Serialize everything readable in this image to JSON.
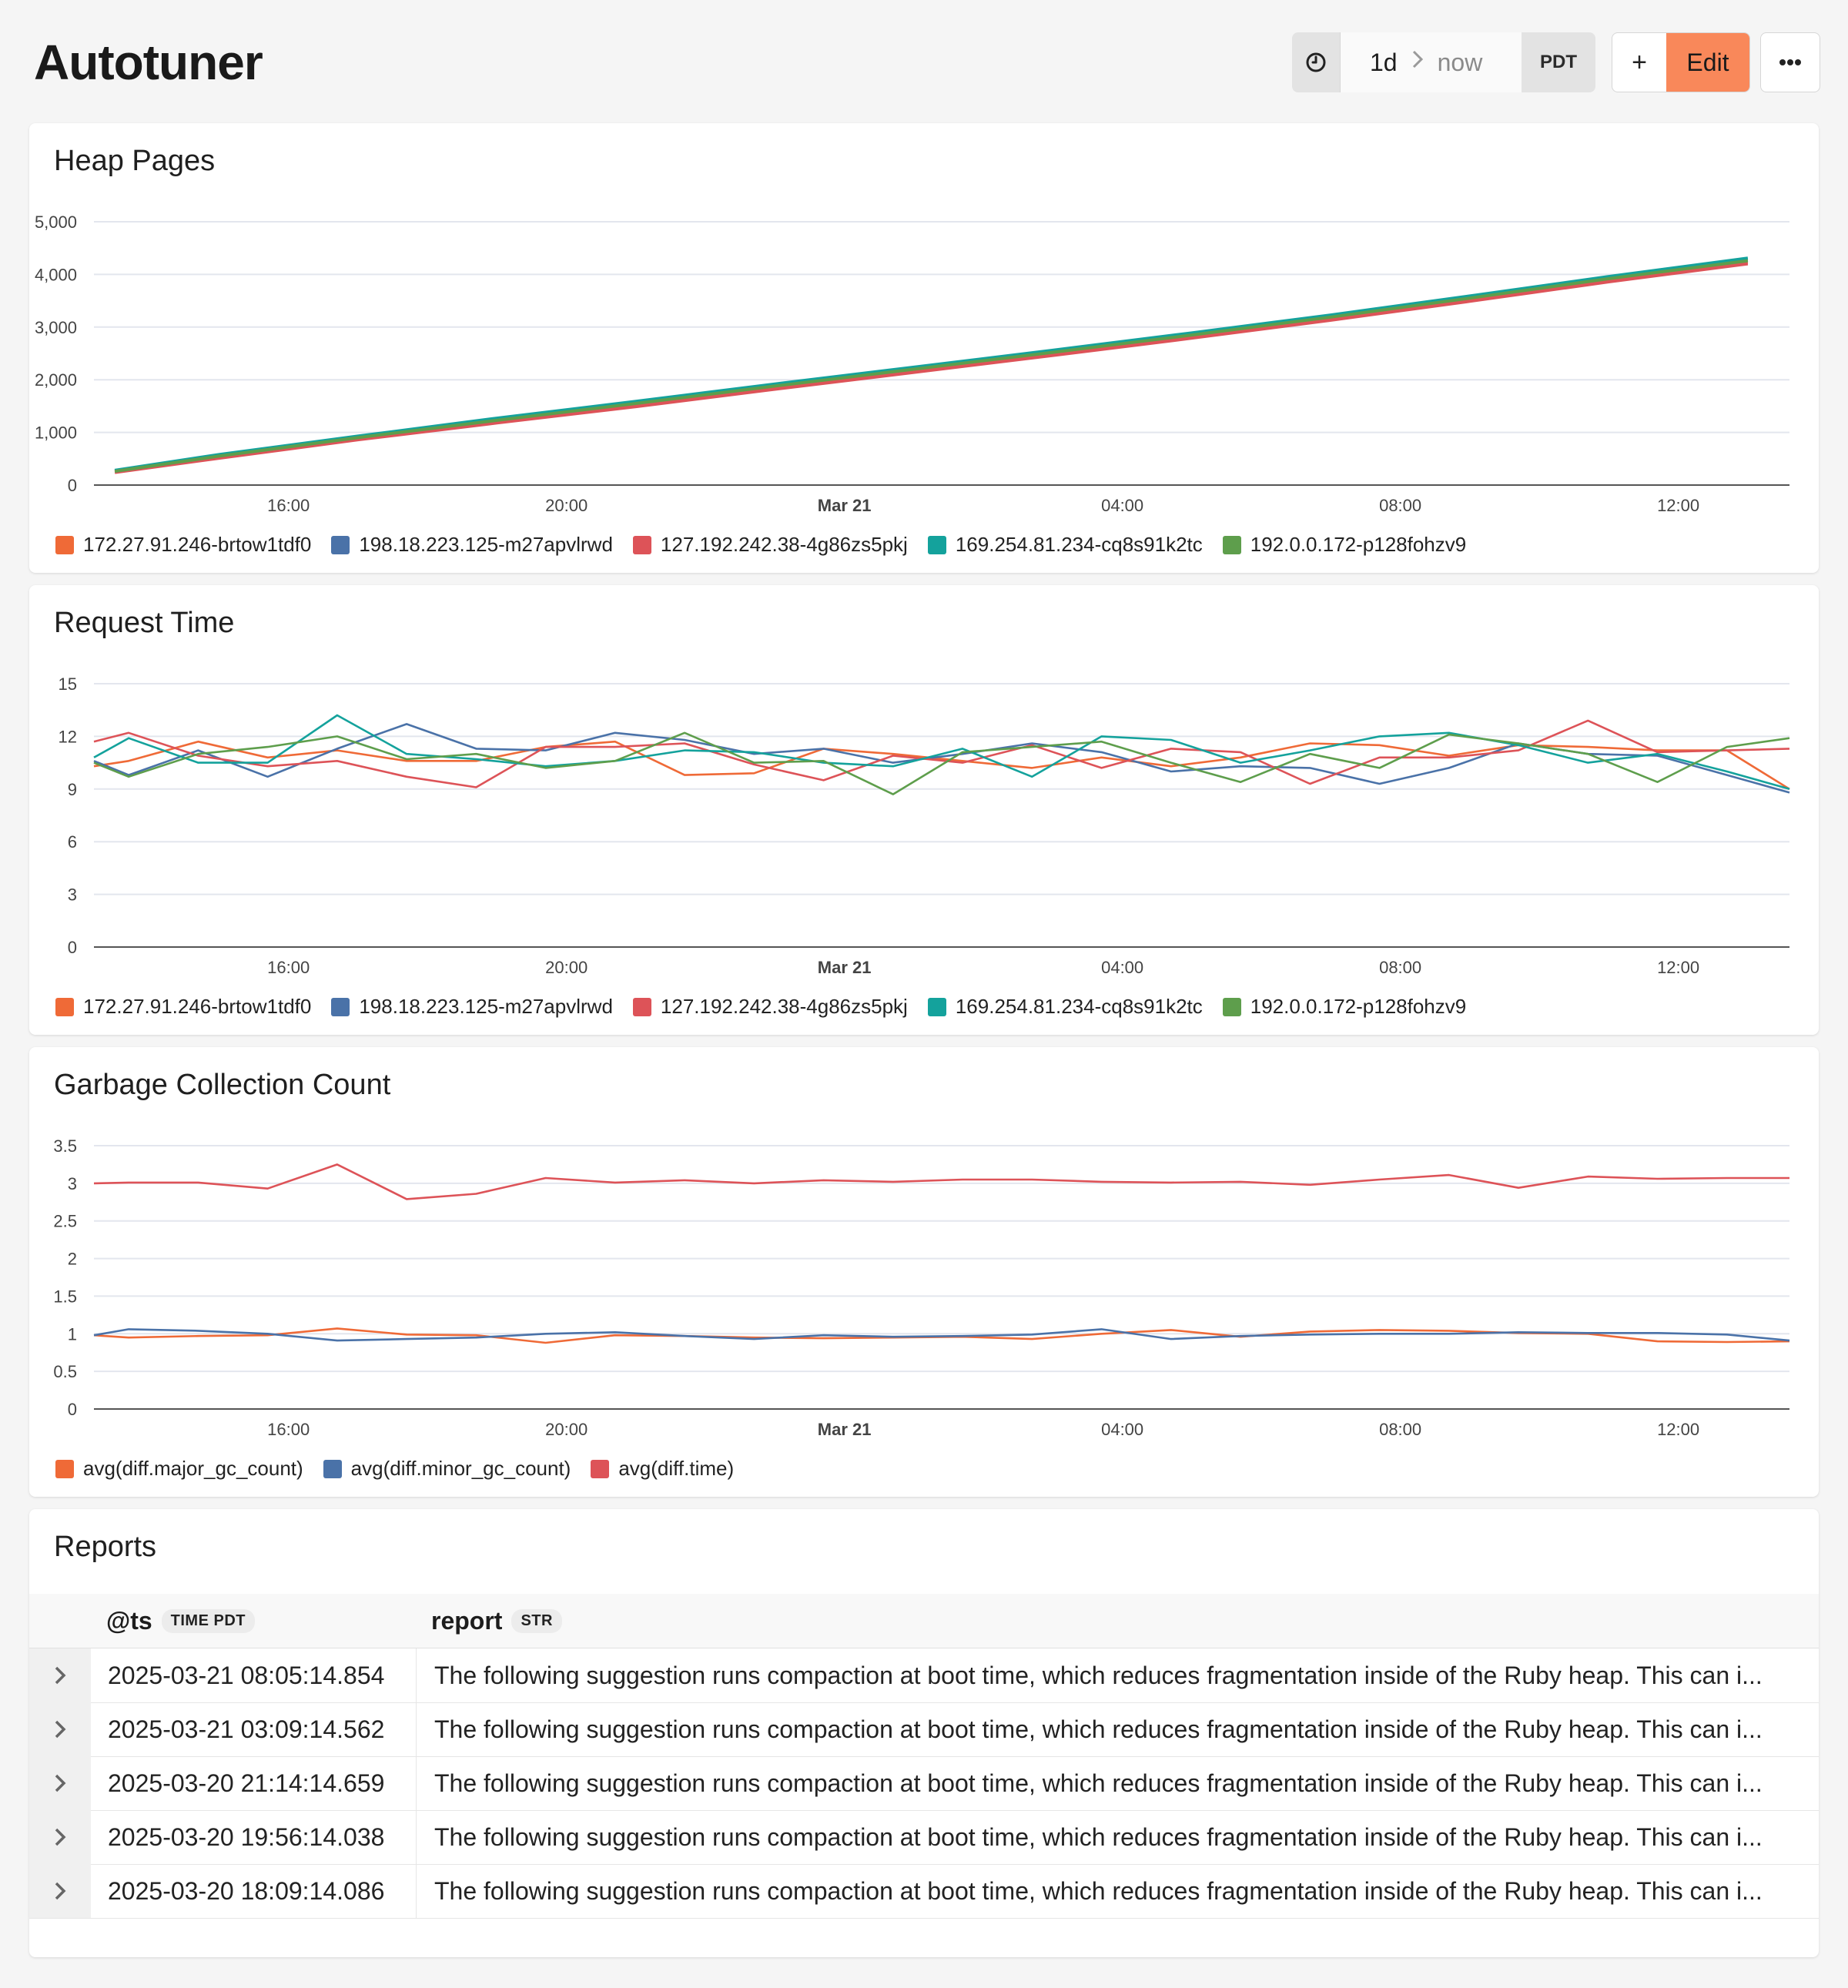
{
  "header": {
    "title": "Autotuner",
    "time_range": {
      "from": "1d",
      "to": "now",
      "timezone": "PDT"
    },
    "add_label": "+",
    "edit_label": "Edit",
    "more_icon": "ellipsis-icon",
    "clock_icon": "clock-icon",
    "accent_color": "#f9885a"
  },
  "series_colors": {
    "orange": "#ef6a37",
    "blue": "#4a72a8",
    "red": "#dd5358",
    "teal": "#14a29c",
    "green": "#5e9e4c"
  },
  "panels": {
    "heap_pages": {
      "title": "Heap Pages",
      "legend": [
        "172.27.91.246-brtow1tdf0",
        "198.18.223.125-m27apvlrwd",
        "127.192.242.38-4g86zs5pkj",
        "169.254.81.234-cq8s91k2tc",
        "192.0.0.172-p128fohzv9"
      ]
    },
    "request_time": {
      "title": "Request Time",
      "legend": [
        "172.27.91.246-brtow1tdf0",
        "198.18.223.125-m27apvlrwd",
        "127.192.242.38-4g86zs5pkj",
        "169.254.81.234-cq8s91k2tc",
        "192.0.0.172-p128fohzv9"
      ]
    },
    "gc_count": {
      "title": "Garbage Collection Count",
      "legend": [
        "avg(diff.major_gc_count)",
        "avg(diff.minor_gc_count)",
        "avg(diff.time)"
      ]
    }
  },
  "chart_data": [
    {
      "type": "line",
      "title": "Heap Pages",
      "x_ticks": [
        "16:00",
        "20:00",
        "Mar 21",
        "04:00",
        "08:00",
        "12:00"
      ],
      "x_tick_hours": [
        16,
        20,
        24,
        28,
        32,
        36
      ],
      "x_range_hours": [
        13.2,
        37.6
      ],
      "ylim": [
        0,
        5000
      ],
      "y_ticks": [
        "0",
        "1,000",
        "2,000",
        "3,000",
        "4,000",
        "5,000"
      ],
      "y_tick_values": [
        0,
        1000,
        2000,
        3000,
        4000,
        5000
      ],
      "x": [
        13.5,
        15.0,
        17.0,
        19.0,
        21.0,
        23.0,
        25.0,
        27.0,
        29.0,
        31.0,
        33.0,
        35.0,
        37.0
      ],
      "series": [
        {
          "name": "172.27.91.246-brtow1tdf0",
          "color": "#ef6a37",
          "values": [
            250,
            530,
            880,
            1210,
            1520,
            1850,
            2170,
            2490,
            2820,
            3160,
            3520,
            3890,
            4230
          ]
        },
        {
          "name": "198.18.223.125-m27apvlrwd",
          "color": "#4a72a8",
          "values": [
            270,
            560,
            910,
            1240,
            1560,
            1890,
            2210,
            2530,
            2860,
            3200,
            3560,
            3930,
            4270
          ]
        },
        {
          "name": "127.192.242.38-4g86zs5pkj",
          "color": "#dd5358",
          "values": [
            240,
            510,
            860,
            1180,
            1490,
            1820,
            2140,
            2460,
            2790,
            3130,
            3490,
            3860,
            4200
          ]
        },
        {
          "name": "169.254.81.234-cq8s91k2tc",
          "color": "#14a29c",
          "values": [
            280,
            580,
            930,
            1270,
            1590,
            1920,
            2240,
            2560,
            2890,
            3230,
            3590,
            3960,
            4310
          ]
        },
        {
          "name": "192.0.0.172-p128fohzv9",
          "color": "#5e9e4c",
          "values": [
            260,
            550,
            900,
            1230,
            1550,
            1880,
            2200,
            2520,
            2850,
            3190,
            3550,
            3920,
            4260
          ]
        }
      ]
    },
    {
      "type": "line",
      "title": "Request Time",
      "x_ticks": [
        "16:00",
        "20:00",
        "Mar 21",
        "04:00",
        "08:00",
        "12:00"
      ],
      "x_tick_hours": [
        16,
        20,
        24,
        28,
        32,
        36
      ],
      "x_range_hours": [
        13.2,
        37.6
      ],
      "ylim": [
        0,
        15
      ],
      "y_ticks": [
        "0",
        "3",
        "6",
        "9",
        "12",
        "15"
      ],
      "y_tick_values": [
        0,
        3,
        6,
        9,
        12,
        15
      ],
      "x": [
        13.2,
        13.7,
        14.7,
        15.7,
        16.7,
        17.7,
        18.7,
        19.7,
        20.7,
        21.7,
        22.7,
        23.7,
        24.7,
        25.7,
        26.7,
        27.7,
        28.7,
        29.7,
        30.7,
        31.7,
        32.7,
        33.7,
        34.7,
        35.7,
        36.7,
        37.6
      ],
      "series": [
        {
          "name": "172.27.91.246-brtow1tdf0",
          "color": "#ef6a37",
          "values": [
            10.3,
            10.6,
            11.7,
            10.8,
            11.2,
            10.6,
            10.6,
            11.4,
            11.7,
            9.8,
            9.9,
            11.3,
            11.0,
            10.6,
            10.2,
            10.8,
            10.3,
            10.8,
            11.6,
            11.5,
            10.9,
            11.5,
            11.4,
            11.2,
            11.2,
            9.0
          ]
        },
        {
          "name": "198.18.223.125-m27apvlrwd",
          "color": "#4a72a8",
          "values": [
            10.6,
            9.8,
            11.2,
            9.7,
            11.3,
            12.7,
            11.3,
            11.2,
            12.2,
            11.8,
            11.0,
            11.3,
            10.5,
            11.0,
            11.6,
            11.1,
            10.0,
            10.3,
            10.2,
            9.3,
            10.2,
            11.6,
            11.0,
            10.9,
            9.8,
            8.8
          ]
        },
        {
          "name": "127.192.242.38-4g86zs5pkj",
          "color": "#dd5358",
          "values": [
            11.7,
            12.2,
            10.9,
            10.3,
            10.6,
            9.7,
            9.1,
            11.4,
            11.4,
            11.6,
            10.4,
            9.5,
            10.9,
            10.5,
            11.5,
            10.2,
            11.3,
            11.1,
            9.3,
            10.8,
            10.8,
            11.2,
            12.9,
            11.1,
            11.2,
            11.3
          ]
        },
        {
          "name": "169.254.81.234-cq8s91k2tc",
          "color": "#14a29c",
          "values": [
            10.8,
            11.9,
            10.5,
            10.5,
            13.2,
            11.0,
            10.7,
            10.3,
            10.6,
            11.2,
            11.1,
            10.5,
            10.3,
            11.3,
            9.7,
            12.0,
            11.8,
            10.5,
            11.2,
            12.0,
            12.2,
            11.5,
            10.5,
            11.0,
            10.0,
            9.0
          ]
        },
        {
          "name": "192.0.0.172-p128fohzv9",
          "color": "#5e9e4c",
          "values": [
            10.5,
            9.7,
            11.0,
            11.4,
            12.0,
            10.7,
            11.0,
            10.2,
            10.6,
            12.2,
            10.5,
            10.6,
            8.7,
            11.1,
            11.4,
            11.7,
            10.5,
            9.4,
            11.0,
            10.2,
            12.1,
            11.6,
            11.0,
            9.4,
            11.4,
            11.9
          ]
        }
      ]
    },
    {
      "type": "line",
      "title": "Garbage Collection Count",
      "x_ticks": [
        "16:00",
        "20:00",
        "Mar 21",
        "04:00",
        "08:00",
        "12:00"
      ],
      "x_tick_hours": [
        16,
        20,
        24,
        28,
        32,
        36
      ],
      "x_range_hours": [
        13.2,
        37.6
      ],
      "ylim": [
        0,
        3.5
      ],
      "y_ticks": [
        "0",
        "0.5",
        "1",
        "1.5",
        "2",
        "2.5",
        "3",
        "3.5"
      ],
      "y_tick_values": [
        0,
        0.5,
        1,
        1.5,
        2,
        2.5,
        3,
        3.5
      ],
      "x": [
        13.2,
        13.7,
        14.7,
        15.7,
        16.7,
        17.7,
        18.7,
        19.7,
        20.7,
        21.7,
        22.7,
        23.7,
        24.7,
        25.7,
        26.7,
        27.7,
        28.7,
        29.7,
        30.7,
        31.7,
        32.7,
        33.7,
        34.7,
        35.7,
        36.7,
        37.6
      ],
      "series": [
        {
          "name": "avg(diff.major_gc_count)",
          "color": "#ef6a37",
          "values": [
            0.98,
            0.95,
            0.97,
            0.98,
            1.07,
            0.99,
            0.98,
            0.88,
            0.98,
            0.97,
            0.95,
            0.94,
            0.95,
            0.96,
            0.93,
            1.0,
            1.05,
            0.96,
            1.03,
            1.05,
            1.04,
            1.01,
            1.0,
            0.9,
            0.89,
            0.9
          ]
        },
        {
          "name": "avg(diff.minor_gc_count)",
          "color": "#4a72a8",
          "values": [
            0.98,
            1.06,
            1.04,
            1.0,
            0.91,
            0.93,
            0.95,
            1.0,
            1.02,
            0.97,
            0.93,
            0.98,
            0.96,
            0.97,
            0.99,
            1.06,
            0.93,
            0.97,
            0.99,
            1.0,
            1.0,
            1.02,
            1.01,
            1.01,
            0.99,
            0.91
          ]
        },
        {
          "name": "avg(diff.time)",
          "color": "#dd5358",
          "values": [
            3.0,
            3.01,
            3.01,
            2.93,
            3.25,
            2.79,
            2.86,
            3.07,
            3.01,
            3.04,
            3.0,
            3.04,
            3.02,
            3.05,
            3.05,
            3.02,
            3.01,
            3.02,
            2.98,
            3.05,
            3.11,
            2.94,
            3.09,
            3.06,
            3.07,
            3.07
          ]
        }
      ]
    }
  ],
  "reports": {
    "title": "Reports",
    "columns": [
      {
        "name": "@ts",
        "type": "TIME PDT"
      },
      {
        "name": "report",
        "type": "STR"
      }
    ],
    "rows": [
      {
        "ts": "2025-03-21 08:05:14.854",
        "report": "The following suggestion runs compaction at boot time, which reduces fragmentation inside of the Ruby heap. This can i..."
      },
      {
        "ts": "2025-03-21 03:09:14.562",
        "report": "The following suggestion runs compaction at boot time, which reduces fragmentation inside of the Ruby heap. This can i..."
      },
      {
        "ts": "2025-03-20 21:14:14.659",
        "report": "The following suggestion runs compaction at boot time, which reduces fragmentation inside of the Ruby heap. This can i..."
      },
      {
        "ts": "2025-03-20 19:56:14.038",
        "report": "The following suggestion runs compaction at boot time, which reduces fragmentation inside of the Ruby heap. This can i..."
      },
      {
        "ts": "2025-03-20 18:09:14.086",
        "report": "The following suggestion runs compaction at boot time, which reduces fragmentation inside of the Ruby heap. This can i..."
      }
    ]
  }
}
